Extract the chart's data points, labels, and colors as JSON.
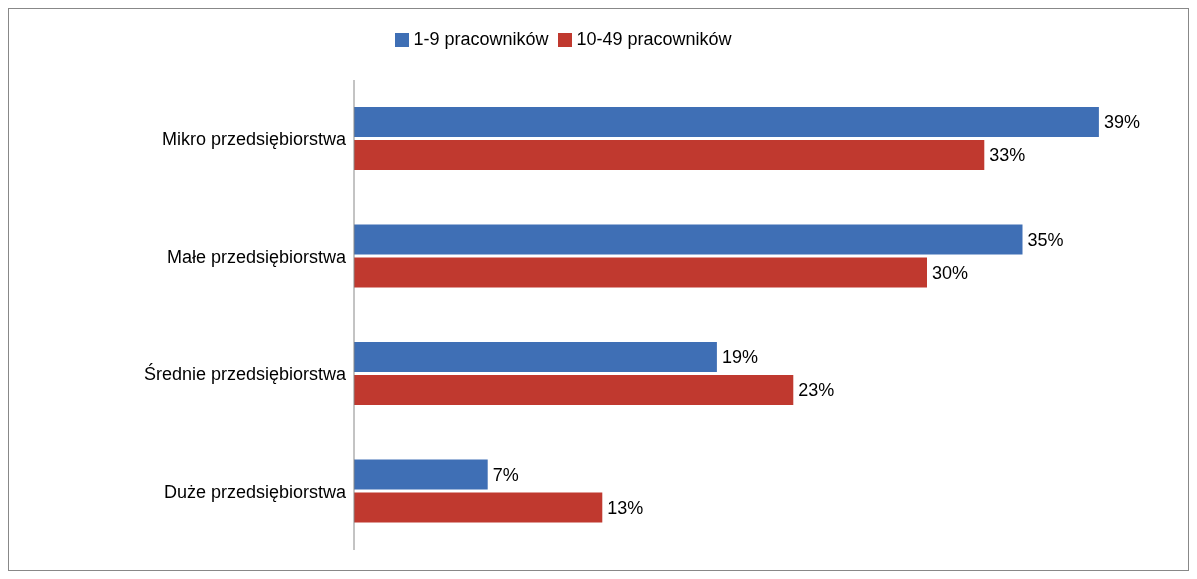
{
  "chart_data": {
    "type": "bar",
    "orientation": "horizontal",
    "categories": [
      "Mikro przedsiębiorstwa",
      "Małe przedsiębiorstwa",
      "Średnie przedsiębiorstwa",
      "Duże przedsiębiorstwa"
    ],
    "series": [
      {
        "name": "1-9 pracowników",
        "color": "#3f6fb5",
        "values": [
          39,
          35,
          19,
          7
        ],
        "value_labels": [
          "39%",
          "35%",
          "19%",
          "7%"
        ]
      },
      {
        "name": "10-49 pracowników",
        "color": "#c0392f",
        "values": [
          33,
          30,
          23,
          13
        ],
        "value_labels": [
          "33%",
          "30%",
          "23%",
          "13%"
        ]
      }
    ],
    "legend": "top",
    "grid": false
  }
}
